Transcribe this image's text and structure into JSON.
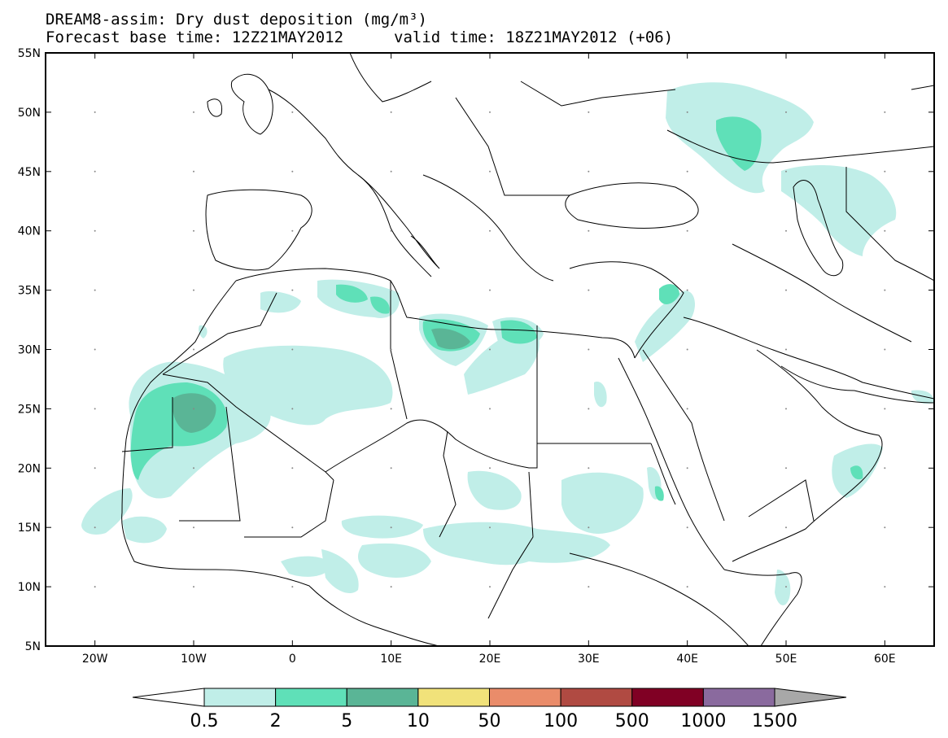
{
  "title_line1": "DREAM8-assim: Dry dust deposition (mg/m³)",
  "title_base": "Forecast base time: 12Z21MAY2012",
  "title_valid": "valid time: 18Z21MAY2012 (+06)",
  "map": {
    "lon_labels": [
      {
        "lon": -20,
        "label": "20W"
      },
      {
        "lon": -10,
        "label": "10W"
      },
      {
        "lon": 0,
        "label": "0"
      },
      {
        "lon": 10,
        "label": "10E"
      },
      {
        "lon": 20,
        "label": "20E"
      },
      {
        "lon": 30,
        "label": "30E"
      },
      {
        "lon": 40,
        "label": "40E"
      },
      {
        "lon": 50,
        "label": "50E"
      },
      {
        "lon": 60,
        "label": "60E"
      }
    ],
    "lat_labels": [
      {
        "lat": 55,
        "label": "55N"
      },
      {
        "lat": 50,
        "label": "50N"
      },
      {
        "lat": 45,
        "label": "45N"
      },
      {
        "lat": 40,
        "label": "40N"
      },
      {
        "lat": 35,
        "label": "35N"
      },
      {
        "lat": 30,
        "label": "30N"
      },
      {
        "lat": 25,
        "label": "25N"
      },
      {
        "lat": 20,
        "label": "20N"
      },
      {
        "lat": 15,
        "label": "15N"
      },
      {
        "lat": 10,
        "label": "10N"
      },
      {
        "lat": 5,
        "label": "5N"
      }
    ],
    "lon_range": [
      -25,
      65
    ],
    "lat_range": [
      5,
      55
    ]
  },
  "colorbar": {
    "colors": [
      "#c0eee8",
      "#5fe0b8",
      "#5ab596",
      "#f1e27a",
      "#ea8c6a",
      "#b04a42",
      "#800024",
      "#8a6a9e",
      "#a8a8a8"
    ],
    "labels": [
      "0.5",
      "2",
      "5",
      "10",
      "50",
      "100",
      "500",
      "1000",
      "1500"
    ]
  }
}
